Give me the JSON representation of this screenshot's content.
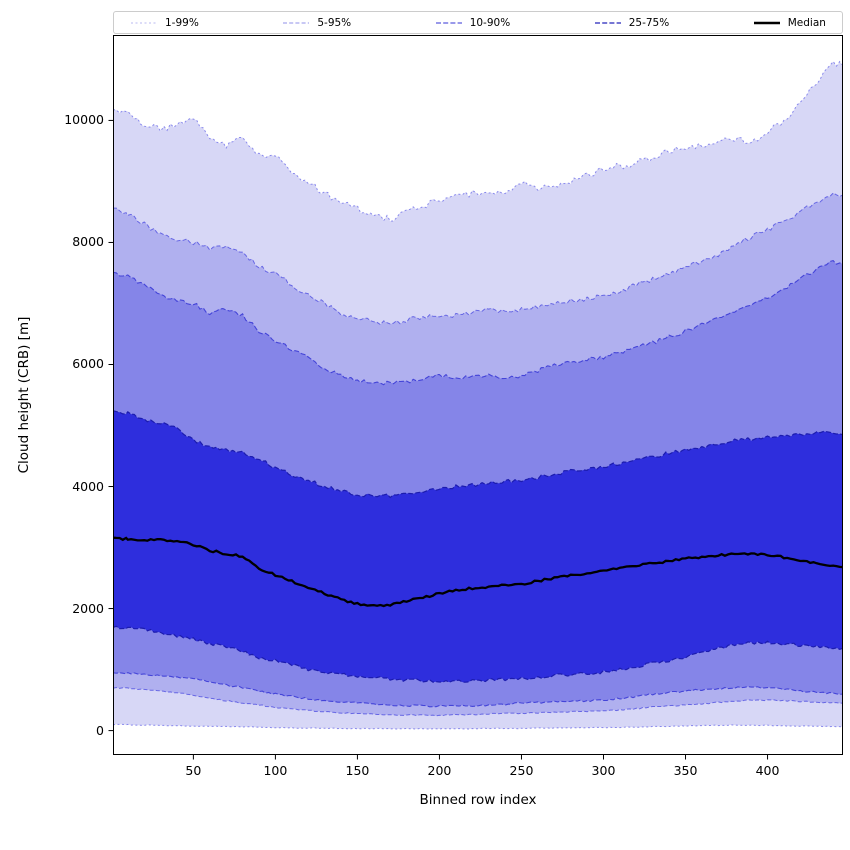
{
  "chart_data": {
    "type": "area",
    "title": "",
    "xlabel": "Binned row index",
    "ylabel": "Cloud height (CRB) [m]",
    "xlim": [
      1,
      446
    ],
    "ylim": [
      -400,
      11400
    ],
    "xticks": [
      50,
      100,
      150,
      200,
      250,
      300,
      350,
      400
    ],
    "yticks": [
      0,
      2000,
      4000,
      6000,
      8000,
      10000
    ],
    "grid": false,
    "legend_position": "top",
    "legend": [
      {
        "label": "1-99%",
        "color": "#b8b8f0",
        "dash": "2,2.5",
        "width": 1.1
      },
      {
        "label": "5-95%",
        "color": "#9090ea",
        "dash": "4,2.2",
        "width": 1.1
      },
      {
        "label": "10-90%",
        "color": "#5c5cde",
        "dash": "5,2.2",
        "width": 1.2
      },
      {
        "label": "25-75%",
        "color": "#2424bb",
        "dash": "5,2.2",
        "width": 1.3
      },
      {
        "label": "Median",
        "color": "#000000",
        "dash": "",
        "width": 2.6
      }
    ],
    "x": [
      1,
      10,
      20,
      30,
      40,
      50,
      60,
      70,
      80,
      90,
      100,
      110,
      120,
      130,
      140,
      150,
      160,
      170,
      180,
      190,
      200,
      210,
      220,
      230,
      240,
      250,
      260,
      270,
      280,
      290,
      300,
      310,
      320,
      330,
      340,
      350,
      360,
      370,
      380,
      390,
      400,
      410,
      420,
      430,
      440,
      446
    ],
    "series": {
      "p01": [
        100,
        95,
        90,
        85,
        80,
        75,
        70,
        65,
        60,
        55,
        50,
        45,
        40,
        40,
        35,
        35,
        30,
        30,
        30,
        30,
        30,
        30,
        30,
        35,
        35,
        35,
        40,
        40,
        45,
        45,
        50,
        55,
        60,
        65,
        70,
        75,
        80,
        85,
        90,
        90,
        85,
        80,
        75,
        70,
        65,
        60
      ],
      "p05": [
        700,
        690,
        670,
        650,
        620,
        580,
        530,
        490,
        450,
        420,
        380,
        350,
        330,
        310,
        290,
        280,
        270,
        260,
        255,
        250,
        250,
        255,
        260,
        270,
        280,
        285,
        290,
        300,
        310,
        315,
        320,
        340,
        360,
        390,
        400,
        420,
        440,
        460,
        480,
        500,
        500,
        490,
        480,
        470,
        460,
        450
      ],
      "p10": [
        950,
        940,
        920,
        900,
        880,
        850,
        800,
        750,
        700,
        650,
        600,
        560,
        520,
        490,
        470,
        450,
        430,
        420,
        410,
        405,
        400,
        405,
        410,
        420,
        430,
        450,
        460,
        470,
        480,
        490,
        500,
        530,
        560,
        600,
        620,
        650,
        670,
        690,
        700,
        710,
        700,
        680,
        650,
        630,
        610,
        600
      ],
      "p25": [
        1700,
        1680,
        1650,
        1600,
        1550,
        1500,
        1420,
        1380,
        1300,
        1200,
        1150,
        1080,
        1000,
        950,
        920,
        900,
        870,
        850,
        830,
        820,
        800,
        810,
        820,
        830,
        840,
        850,
        880,
        900,
        920,
        940,
        960,
        1000,
        1050,
        1100,
        1150,
        1200,
        1280,
        1350,
        1400,
        1440,
        1450,
        1420,
        1400,
        1380,
        1360,
        1350
      ],
      "median": [
        3150,
        3140,
        3120,
        3130,
        3100,
        3050,
        2950,
        2900,
        2850,
        2650,
        2550,
        2450,
        2350,
        2250,
        2150,
        2080,
        2050,
        2060,
        2120,
        2180,
        2250,
        2300,
        2330,
        2360,
        2380,
        2400,
        2450,
        2500,
        2550,
        2580,
        2620,
        2660,
        2700,
        2740,
        2780,
        2820,
        2840,
        2870,
        2890,
        2900,
        2880,
        2840,
        2780,
        2740,
        2700,
        2680
      ],
      "p75": [
        5250,
        5200,
        5100,
        5050,
        4950,
        4750,
        4650,
        4600,
        4550,
        4450,
        4300,
        4200,
        4100,
        4000,
        3920,
        3870,
        3840,
        3850,
        3880,
        3920,
        3960,
        4000,
        4020,
        4050,
        4080,
        4100,
        4150,
        4200,
        4250,
        4280,
        4330,
        4380,
        4430,
        4480,
        4550,
        4600,
        4650,
        4700,
        4750,
        4780,
        4800,
        4820,
        4850,
        4870,
        4880,
        4850
      ],
      "p90": [
        7500,
        7450,
        7300,
        7150,
        7050,
        7000,
        6850,
        6900,
        6800,
        6550,
        6400,
        6250,
        6100,
        5950,
        5820,
        5750,
        5680,
        5700,
        5720,
        5780,
        5820,
        5780,
        5800,
        5820,
        5780,
        5820,
        5900,
        5980,
        6050,
        6080,
        6120,
        6200,
        6280,
        6350,
        6450,
        6550,
        6650,
        6750,
        6850,
        6950,
        7100,
        7250,
        7400,
        7550,
        7680,
        7650
      ],
      "p95": [
        8550,
        8450,
        8300,
        8150,
        8050,
        8000,
        7900,
        7950,
        7850,
        7600,
        7500,
        7300,
        7150,
        7000,
        6850,
        6750,
        6700,
        6680,
        6720,
        6780,
        6820,
        6800,
        6850,
        6900,
        6850,
        6900,
        6950,
        7000,
        7050,
        7080,
        7120,
        7200,
        7300,
        7400,
        7500,
        7600,
        7700,
        7800,
        7950,
        8100,
        8200,
        8350,
        8500,
        8650,
        8800,
        8780
      ],
      "p99": [
        10200,
        10100,
        9950,
        9850,
        9950,
        10050,
        9700,
        9600,
        9700,
        9450,
        9400,
        9150,
        9000,
        8800,
        8650,
        8550,
        8420,
        8380,
        8500,
        8600,
        8700,
        8750,
        8800,
        8850,
        8780,
        9000,
        8850,
        8950,
        9000,
        9100,
        9200,
        9250,
        9300,
        9400,
        9500,
        9550,
        9600,
        9650,
        9700,
        9600,
        9800,
        10000,
        10300,
        10600,
        10950,
        10900
      ]
    },
    "bands": [
      {
        "upper": "p99",
        "lower": "p01",
        "fill": "#d7d7f6",
        "edge": "#8888ec",
        "dash": "2,2.5",
        "edge_width": 1.0,
        "label": "1-99%"
      },
      {
        "upper": "p95",
        "lower": "p05",
        "fill": "#b0b0ef",
        "edge": "#6666e4",
        "dash": "4,2.2",
        "edge_width": 1.0,
        "label": "5-95%"
      },
      {
        "upper": "p90",
        "lower": "p10",
        "fill": "#8585e8",
        "edge": "#4444d8",
        "dash": "5,2.2",
        "edge_width": 1.1,
        "label": "10-90%"
      },
      {
        "upper": "p75",
        "lower": "p25",
        "fill": "#2e2edd",
        "edge": "#1c1cae",
        "dash": "5,2.2",
        "edge_width": 1.2,
        "label": "25-75%"
      }
    ],
    "median": {
      "key": "median",
      "color": "#000000",
      "width": 2.3,
      "label": "Median"
    },
    "noise": {
      "p01": 6,
      "p05": 10,
      "p10": 15,
      "p25": 25,
      "median": 18,
      "p75": 30,
      "p90": 35,
      "p95": 40,
      "p99": 55
    }
  }
}
